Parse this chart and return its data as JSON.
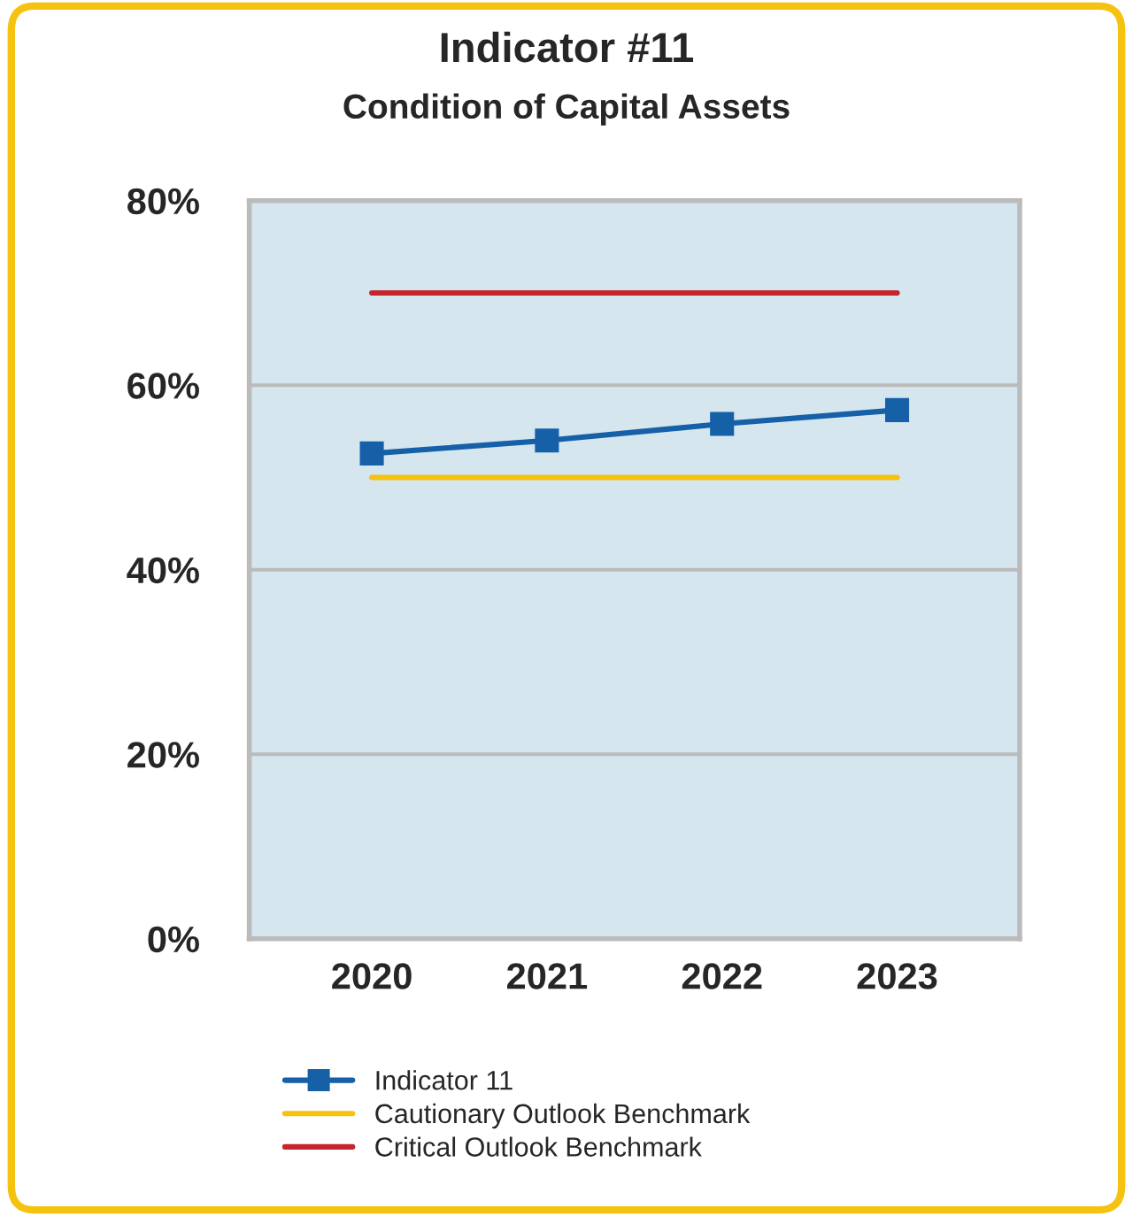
{
  "chart_data": {
    "type": "line",
    "title": "Indicator #11",
    "subtitle": "Condition of Capital Assets",
    "categories": [
      "2020",
      "2021",
      "2022",
      "2023"
    ],
    "series": [
      {
        "name": "Indicator 11",
        "color": "#1660a8",
        "values": [
          52.6,
          54.0,
          55.8,
          57.3
        ],
        "marker": "square"
      },
      {
        "name": "Cautionary Outlook Benchmark",
        "color": "#f5c20f",
        "values": [
          50,
          50,
          50,
          50
        ],
        "marker": "none"
      },
      {
        "name": "Critical Outlook Benchmark",
        "color": "#c4262e",
        "values": [
          70,
          70,
          70,
          70
        ],
        "marker": "none"
      }
    ],
    "ylim": [
      0,
      80
    ],
    "yticks": [
      {
        "value": 0,
        "label": "0%"
      },
      {
        "value": 20,
        "label": "20%"
      },
      {
        "value": 40,
        "label": "40%"
      },
      {
        "value": 60,
        "label": "60%"
      },
      {
        "value": 80,
        "label": "80%"
      }
    ],
    "grid": "y",
    "legend": "bottom",
    "line_style": "solid"
  }
}
